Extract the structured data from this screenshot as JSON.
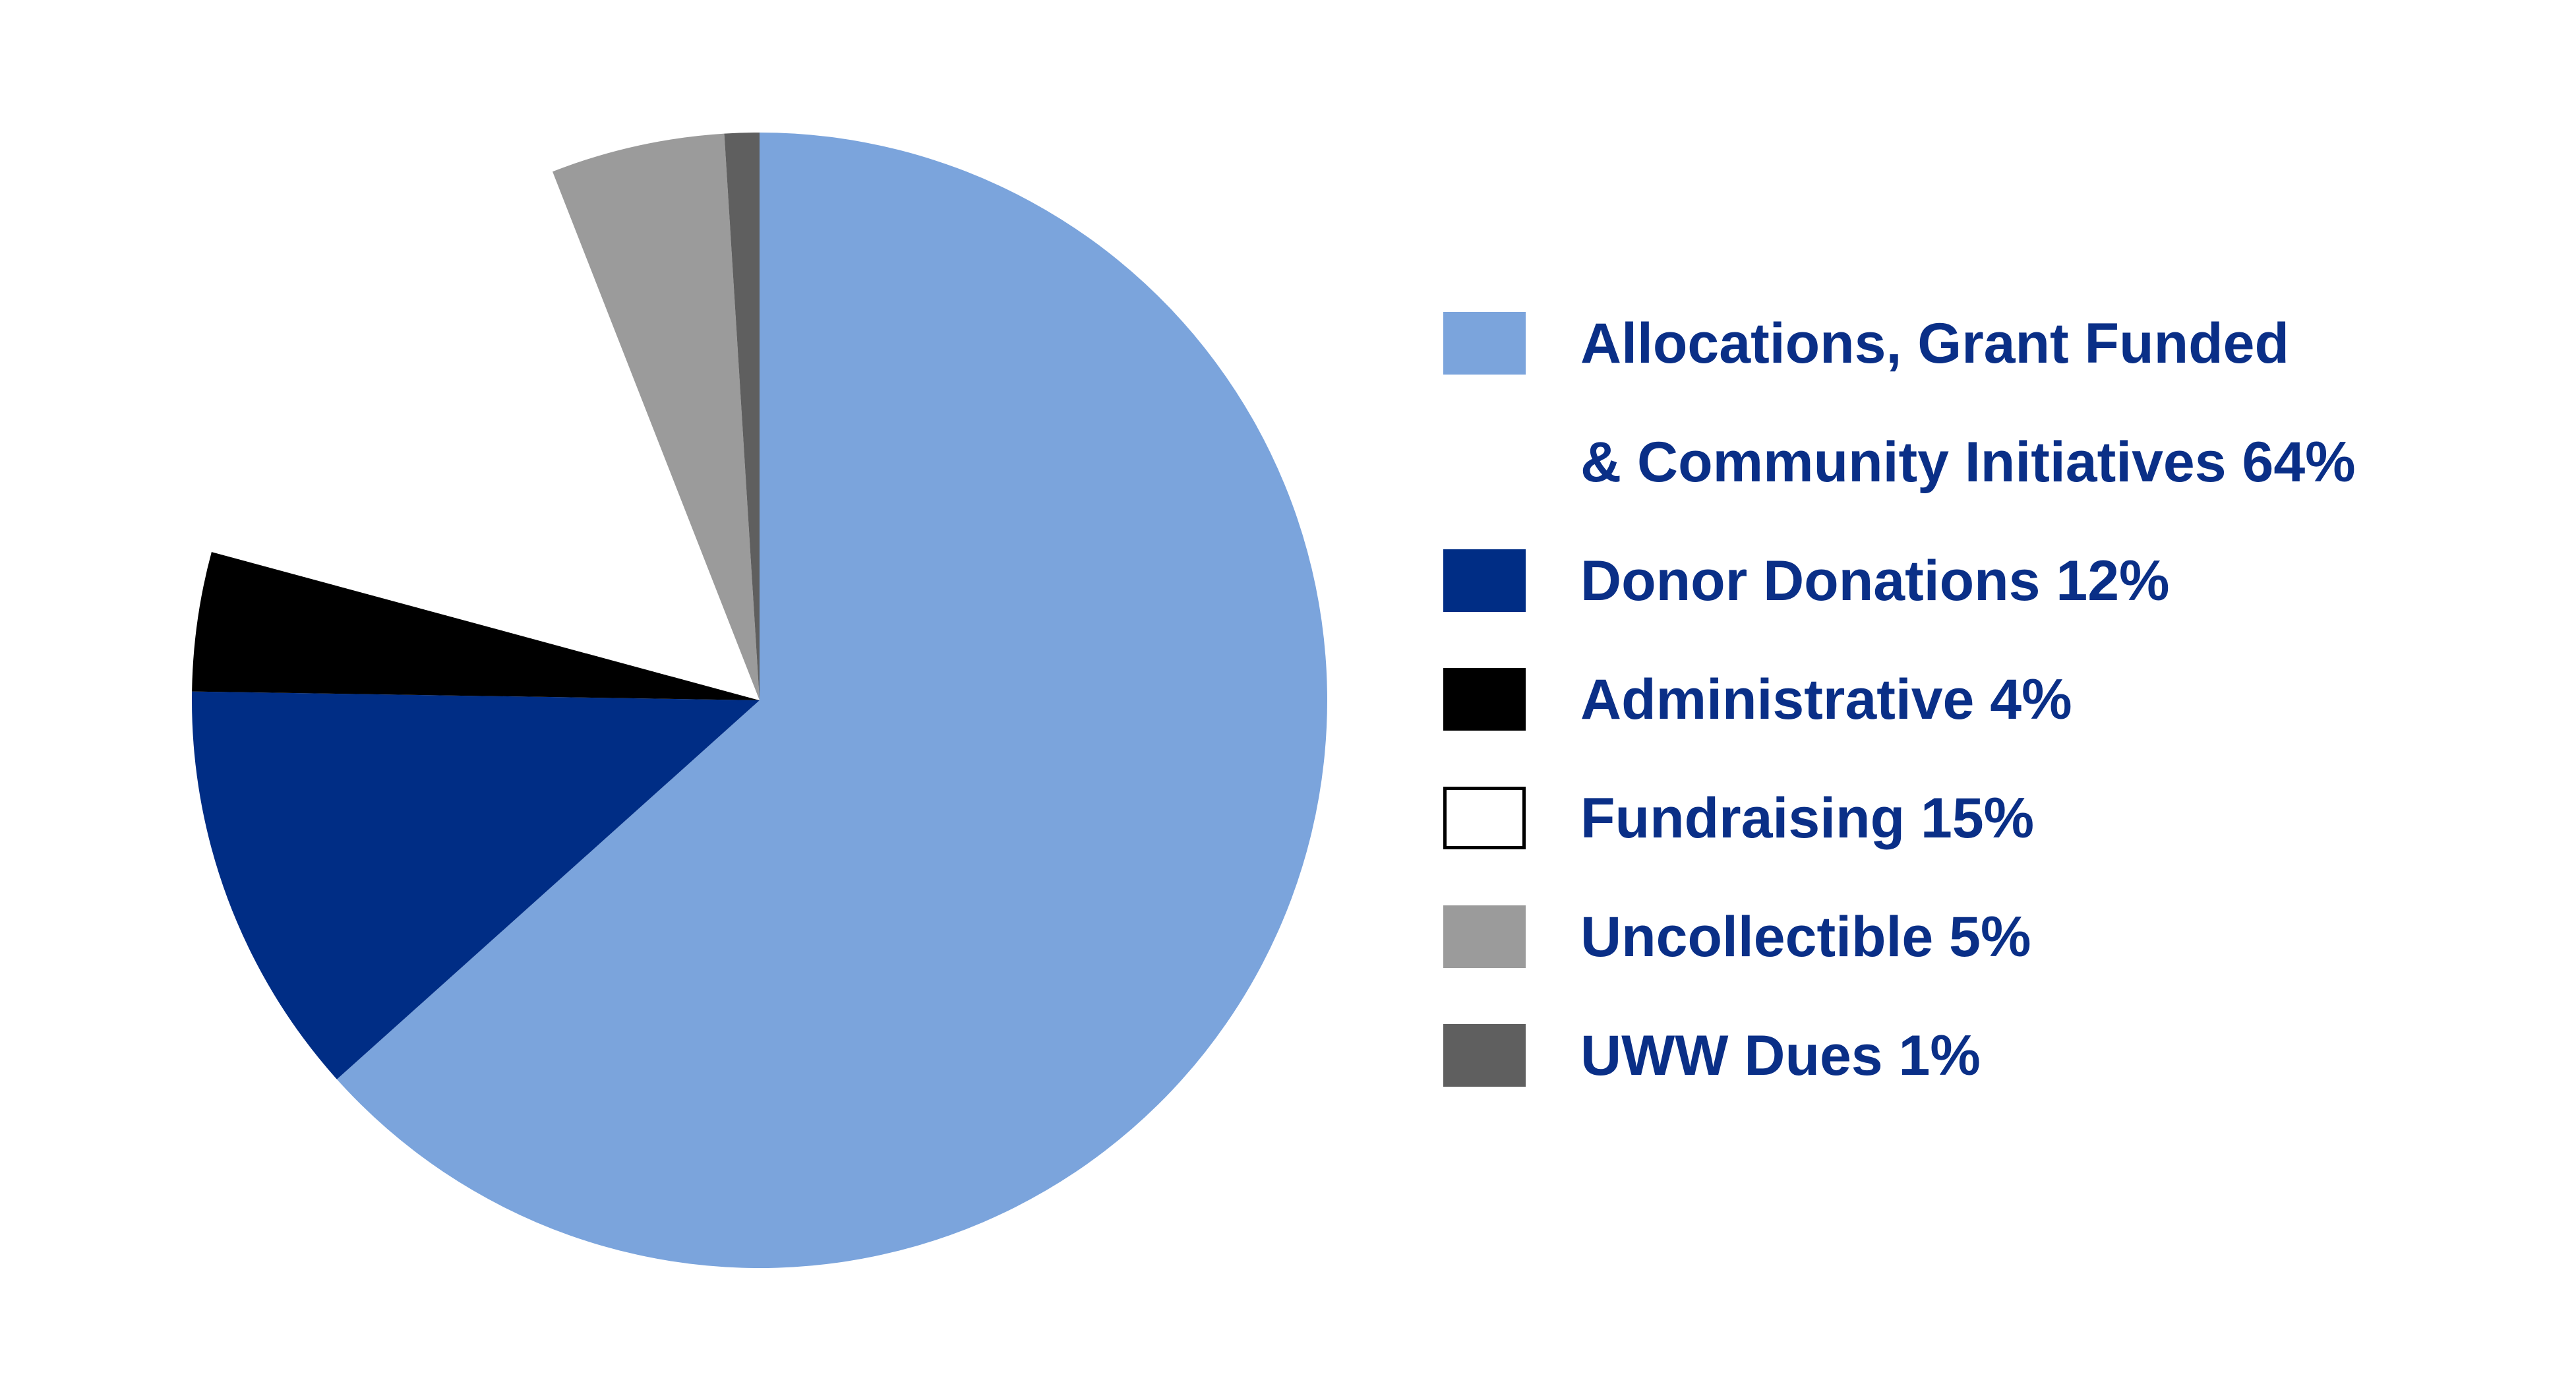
{
  "chart_data": {
    "type": "pie",
    "categories": [
      "Allocations, Grant Funded\n& Community Initiatives 64%",
      "Donor Donations 12%",
      "Administrative 4%",
      "Fundraising 15%",
      "Uncollectible 5%",
      "UWW Dues 1%"
    ],
    "values": [
      64,
      12,
      4,
      15,
      5,
      1
    ],
    "colors": [
      "#7ba4dc",
      "#002d85",
      "#000000",
      "#ffffff",
      "#9b9b9b",
      "#5f5f5f"
    ],
    "legend": "right"
  }
}
